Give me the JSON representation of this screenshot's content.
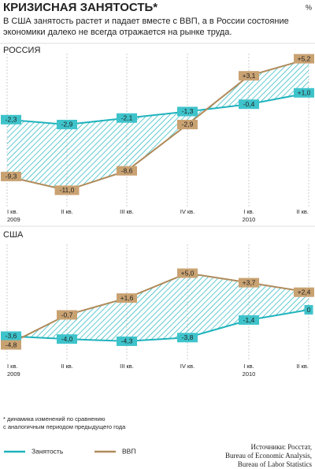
{
  "header": {
    "title": "КРИЗИСНАЯ ЗАНЯТОСТЬ*",
    "unit": "%",
    "subtitle": [
      "В США занятость растет и падает вместе с ВВП, а в России состояние",
      "экономики далеко не всегда отражается на рынке труда."
    ]
  },
  "chart_data": [
    {
      "type": "line",
      "title": "РОССИЯ",
      "categories": [
        "I кв.",
        "II кв.",
        "III кв.",
        "IV кв.",
        "I кв.",
        "II кв."
      ],
      "category_years": [
        "2009",
        null,
        null,
        null,
        "2010",
        null
      ],
      "ylim": [
        -13,
        7
      ],
      "series": [
        {
          "name": "Занятость",
          "color": "#1fb3bd",
          "label_color": "#3ec3cb",
          "values": [
            -2.3,
            -2.9,
            -2.1,
            -1.3,
            -0.4,
            1.0
          ],
          "value_labels": [
            "-2,3",
            "-2,9",
            "-2,1",
            "-1,3",
            "-0,4",
            "+1,0"
          ]
        },
        {
          "name": "ВВП",
          "color": "#b08a5a",
          "label_color": "#c9a272",
          "values": [
            -9.3,
            -11.0,
            -8.6,
            -2.9,
            3.1,
            5.2
          ],
          "value_labels": [
            "-9,3",
            "-11,0",
            "-8,6",
            "-2,9",
            "+3,1",
            "+5,2"
          ]
        }
      ]
    },
    {
      "type": "line",
      "title": "США",
      "categories": [
        "I кв.",
        "II кв.",
        "III кв.",
        "IV кв.",
        "I кв.",
        "II кв."
      ],
      "category_years": [
        "2009",
        null,
        null,
        null,
        "2010",
        null
      ],
      "ylim": [
        -7,
        7
      ],
      "series": [
        {
          "color": "#1fb3bd",
          "label_color": "#3ec3cb",
          "values": [
            -3.6,
            -4.0,
            -4.3,
            -3.8,
            -1.4,
            0
          ],
          "value_labels": [
            "-3,6",
            "-4,0",
            "-4,3",
            "-3,8",
            "-1,4",
            "0"
          ]
        },
        {
          "color": "#b08a5a",
          "label_color": "#c9a272",
          "values": [
            -4.8,
            -0.7,
            1.6,
            5.0,
            3.7,
            2.4
          ],
          "value_labels": [
            "-4,8",
            "-0,7",
            "+1,6",
            "+5,0",
            "+3,7",
            "+2,4"
          ]
        }
      ]
    }
  ],
  "footer": {
    "footnote": [
      "* динамика изменений по сравнению",
      "с аналогичным периодом предыдущего года"
    ],
    "source": [
      "Источники: Росстат,",
      "Bureau of Economic Analysis,",
      "Bureau of Labor Statistics"
    ]
  }
}
